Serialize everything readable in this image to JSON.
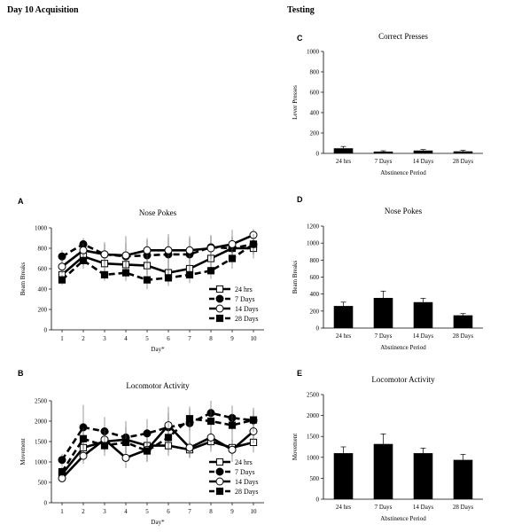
{
  "headings": {
    "left": "Day 10 Acquisition",
    "right": "Testing"
  },
  "chart_data": [
    {
      "id": "C",
      "type": "bar",
      "panel": "C",
      "title": "Correct Presses",
      "xlabel": "Abstinence Period",
      "ylabel": "Lever Presses",
      "ylim": [
        0,
        1000
      ],
      "yticks": [
        0,
        200,
        400,
        600,
        800,
        1000
      ],
      "categories": [
        "24 hrs",
        "7 Days",
        "14 Days",
        "28 Days"
      ],
      "values": [
        50,
        18,
        28,
        20
      ],
      "errors": [
        18,
        8,
        10,
        10
      ],
      "color": "#000000"
    },
    {
      "id": "D",
      "type": "bar",
      "panel": "D",
      "title": "Nose Pokes",
      "xlabel": "Abstinence Period",
      "ylabel": "Beam Breaks",
      "ylim": [
        0,
        1200
      ],
      "yticks": [
        0,
        200,
        400,
        600,
        800,
        1000,
        1200
      ],
      "categories": [
        "24 hrs",
        "7 Days",
        "14 Days",
        "28 Days"
      ],
      "values": [
        260,
        355,
        305,
        150
      ],
      "errors": [
        45,
        80,
        45,
        20
      ],
      "color": "#000000"
    },
    {
      "id": "E",
      "type": "bar",
      "panel": "E",
      "title": "Locomotor Activity",
      "xlabel": "Abstinence Period",
      "ylabel": "Movement",
      "ylim": [
        0,
        2500
      ],
      "yticks": [
        0,
        500,
        1000,
        1500,
        2000,
        2500
      ],
      "categories": [
        "24 hrs",
        "7 Days",
        "14 Days",
        "28 Days"
      ],
      "values": [
        1100,
        1320,
        1100,
        940
      ],
      "errors": [
        150,
        240,
        120,
        130
      ],
      "color": "#000000"
    },
    {
      "id": "A",
      "type": "line",
      "panel": "A",
      "title": "Nose Pokes",
      "xlabel": "Day*",
      "ylabel": "Beam Breaks",
      "ylim": [
        0,
        1000
      ],
      "yticks": [
        0,
        200,
        400,
        600,
        800,
        1000
      ],
      "x": [
        1,
        2,
        3,
        4,
        5,
        6,
        7,
        8,
        9,
        10
      ],
      "legend_position": "bottom-right",
      "series": [
        {
          "name": "24 hrs",
          "style": "solid",
          "marker": "square-open",
          "values": [
            540,
            720,
            650,
            640,
            630,
            560,
            600,
            700,
            800,
            800
          ],
          "errors": [
            60,
            90,
            90,
            100,
            90,
            90,
            90,
            90,
            100,
            100
          ]
        },
        {
          "name": "7 Days",
          "style": "dashed",
          "marker": "circle-filled",
          "values": [
            720,
            840,
            740,
            720,
            730,
            740,
            740,
            810,
            800,
            840
          ],
          "errors": [
            60,
            60,
            120,
            200,
            150,
            200,
            180,
            120,
            120,
            100
          ]
        },
        {
          "name": "14 Days",
          "style": "solid",
          "marker": "circle-open",
          "values": [
            620,
            780,
            740,
            730,
            780,
            780,
            780,
            800,
            840,
            930
          ],
          "errors": [
            70,
            70,
            100,
            120,
            120,
            130,
            120,
            120,
            140,
            60
          ]
        },
        {
          "name": "28 Days",
          "style": "dashed",
          "marker": "square-filled",
          "values": [
            490,
            680,
            540,
            560,
            490,
            510,
            540,
            580,
            700,
            840
          ],
          "errors": [
            50,
            80,
            60,
            80,
            90,
            80,
            80,
            80,
            100,
            100
          ]
        }
      ]
    },
    {
      "id": "B",
      "type": "line",
      "panel": "B",
      "title": "Locomotor Activity",
      "xlabel": "Day*",
      "ylabel": "Movement",
      "ylim": [
        0,
        2500
      ],
      "yticks": [
        0,
        500,
        1000,
        1500,
        2000,
        2500
      ],
      "x": [
        1,
        2,
        3,
        4,
        5,
        6,
        7,
        8,
        9,
        10
      ],
      "legend_position": "bottom-right",
      "series": [
        {
          "name": "24 hrs",
          "style": "solid",
          "marker": "square-open",
          "values": [
            700,
            1350,
            1500,
            1550,
            1400,
            1400,
            1300,
            1500,
            1350,
            1480
          ],
          "errors": [
            120,
            200,
            250,
            300,
            250,
            250,
            200,
            250,
            200,
            250
          ]
        },
        {
          "name": "7 Days",
          "style": "dashed",
          "marker": "circle-filled",
          "values": [
            1050,
            1850,
            1750,
            1600,
            1700,
            1850,
            1950,
            2200,
            2080,
            2020
          ],
          "errors": [
            150,
            550,
            350,
            400,
            350,
            500,
            350,
            300,
            300,
            250
          ]
        },
        {
          "name": "14 Days",
          "style": "solid",
          "marker": "circle-open",
          "values": [
            600,
            1150,
            1550,
            1100,
            1300,
            1900,
            1350,
            1600,
            1300,
            1750
          ],
          "errors": [
            100,
            200,
            250,
            250,
            300,
            300,
            250,
            250,
            300,
            300
          ]
        },
        {
          "name": "28 Days",
          "style": "dashed",
          "marker": "square-filled",
          "values": [
            760,
            1570,
            1400,
            1480,
            1270,
            1600,
            2060,
            2000,
            1900,
            2030
          ],
          "errors": [
            120,
            250,
            250,
            250,
            250,
            350,
            300,
            300,
            300,
            300
          ]
        }
      ]
    }
  ]
}
